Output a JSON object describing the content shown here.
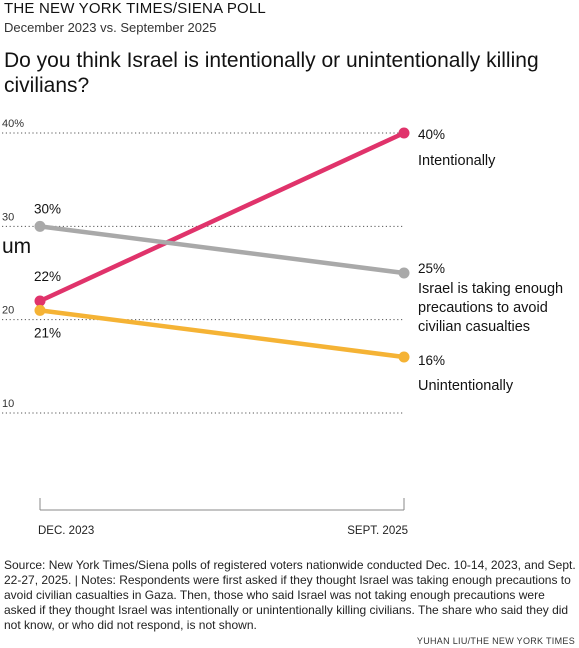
{
  "header": {
    "kicker": "THE NEW YORK TIMES/SIENA POLL",
    "dek": "December 2023 vs. September 2025",
    "question": "Do you think Israel is intentionally or unintentionally killing civilians?"
  },
  "chart_data": {
    "type": "line",
    "title": "Do you think Israel is intentionally or unintentionally killing civilians?",
    "categories": [
      "DEC. 2023",
      "SEPT. 2025"
    ],
    "ylim": [
      10,
      40
    ],
    "yticks": [
      "40%",
      "30",
      "20",
      "10"
    ],
    "ytick_values": [
      40,
      30,
      20,
      10
    ],
    "grid": "dotted horizontal",
    "stray_text": "um",
    "series": [
      {
        "name_lines": [
          "Intentionally"
        ],
        "values": [
          22,
          40
        ],
        "start_label": "22%",
        "end_label": "40%",
        "color": "#e0336b"
      },
      {
        "name_lines": [
          "Israel is taking enough",
          "precautions to avoid",
          "civilian casualties"
        ],
        "values": [
          30,
          25
        ],
        "start_label": "30%",
        "end_label": "25%",
        "color": "#a9a9a9"
      },
      {
        "name_lines": [
          "Unintentionally"
        ],
        "values": [
          21,
          16
        ],
        "start_label": "21%",
        "end_label": "16%",
        "color": "#f5b335"
      }
    ]
  },
  "footer": {
    "source": "Source: New York Times/Siena polls of registered voters nationwide conducted Dec. 10-14, 2023, and Sept. 22-27, 2025. | Notes: Respondents were first asked if they thought Israel was taking enough precautions to avoid civilian casualties in Gaza. Then, those who said Israel was not taking enough precautions were asked if they thought Israel was intentionally or unintentionally killing civilians. The share who said they did not know, or who did not respond, is not shown.",
    "credit": "YUHAN LIU/THE NEW YORK TIMES"
  }
}
